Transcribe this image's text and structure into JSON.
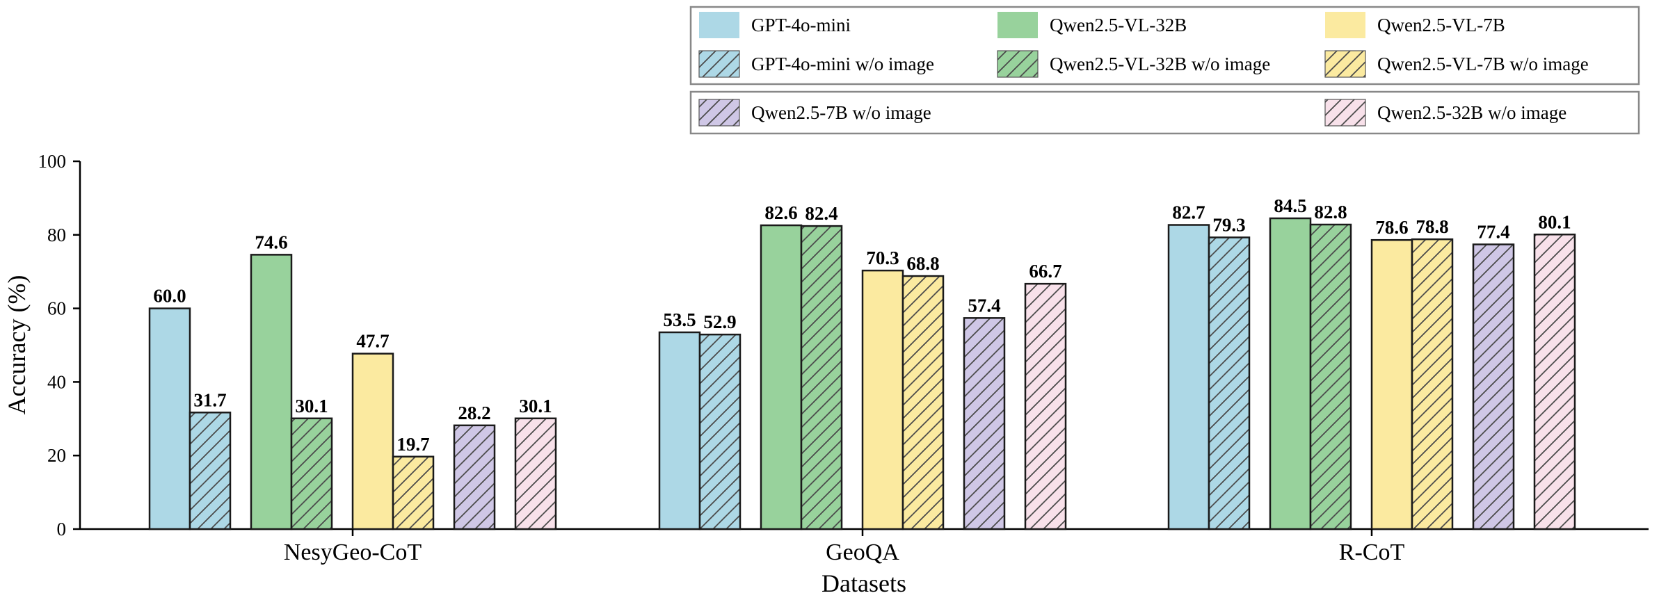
{
  "chart_data": {
    "type": "bar",
    "title": "",
    "xlabel": "Datasets",
    "ylabel": "Accuracy (%)",
    "ylim": [
      0,
      100
    ],
    "yticks": [
      0,
      20,
      40,
      60,
      80,
      100
    ],
    "grid": false,
    "categories": [
      "NesyGeo-CoT",
      "GeoQA",
      "R-CoT"
    ],
    "series": [
      {
        "name": "GPT-4o-mini",
        "color": "#add8e6",
        "hatch": false,
        "values": [
          60.0,
          53.5,
          82.7
        ],
        "labels": [
          "60.0",
          "53.5",
          "82.7"
        ]
      },
      {
        "name": "GPT-4o-mini w/o image",
        "color": "#add8e6",
        "hatch": true,
        "values": [
          31.7,
          52.9,
          79.3
        ],
        "labels": [
          "31.7",
          "52.9",
          "79.3"
        ]
      },
      {
        "name": "Qwen2.5-VL-32B",
        "color": "#98d29c",
        "hatch": false,
        "values": [
          74.6,
          82.6,
          84.5
        ],
        "labels": [
          "74.6",
          "82.6",
          "84.5"
        ]
      },
      {
        "name": "Qwen2.5-VL-32B w/o image",
        "color": "#98d29c",
        "hatch": true,
        "values": [
          30.1,
          82.4,
          82.8
        ],
        "labels": [
          "30.1",
          "82.4",
          "82.8"
        ]
      },
      {
        "name": "Qwen2.5-VL-7B",
        "color": "#fbeaa0",
        "hatch": false,
        "values": [
          47.7,
          70.3,
          78.6
        ],
        "labels": [
          "47.7",
          "70.3",
          "78.6"
        ]
      },
      {
        "name": "Qwen2.5-VL-7B w/o image",
        "color": "#fbeaa0",
        "hatch": true,
        "values": [
          19.7,
          68.8,
          78.8
        ],
        "labels": [
          "19.7",
          "68.8",
          "78.8"
        ]
      },
      {
        "name": "Qwen2.5-7B w/o image",
        "color": "#cfc7e6",
        "hatch": true,
        "values": [
          28.2,
          57.4,
          77.4
        ],
        "labels": [
          "28.2",
          "57.4",
          "77.4"
        ]
      },
      {
        "name": "Qwen2.5-32B w/o image",
        "color": "#f8e1ea",
        "hatch": true,
        "values": [
          30.1,
          66.7,
          80.1
        ],
        "labels": [
          "30.1",
          "66.7",
          "80.1"
        ]
      }
    ],
    "legend": {
      "placement": "top-right",
      "box1_rows": [
        [
          "GPT-4o-mini",
          "Qwen2.5-VL-32B",
          "Qwen2.5-VL-7B"
        ],
        [
          "GPT-4o-mini w/o image",
          "Qwen2.5-VL-32B w/o image",
          "Qwen2.5-VL-7B w/o image"
        ]
      ],
      "box2_row": [
        "Qwen2.5-7B w/o image",
        "Qwen2.5-32B w/o image"
      ]
    }
  }
}
